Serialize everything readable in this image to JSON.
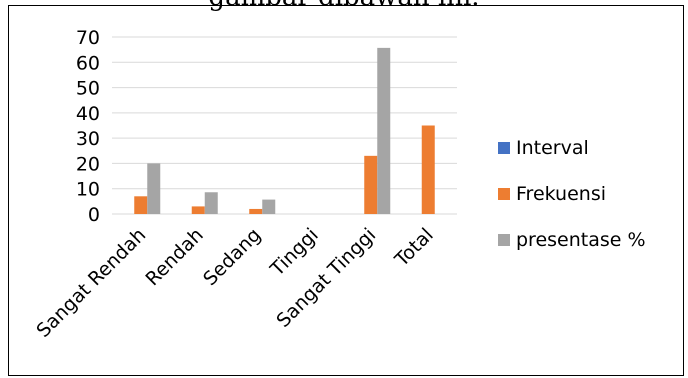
{
  "caption": "gambar dibawah ini.",
  "chart_data": {
    "type": "bar",
    "categories": [
      "Sangat Rendah",
      "Rendah",
      "Sedang",
      "Tinggi",
      "Sangat Tinggi",
      "Total"
    ],
    "series": [
      {
        "name": "Interval",
        "values": [
          0,
          0,
          0,
          0,
          0,
          0
        ],
        "color": "#4472C4"
      },
      {
        "name": "Frekuensi",
        "values": [
          7,
          3,
          2,
          0,
          23,
          35
        ],
        "color": "#ED7D31"
      },
      {
        "name": "presentase %",
        "values": [
          20,
          8.6,
          5.7,
          0,
          65.7,
          0
        ],
        "color": "#A5A5A5"
      }
    ],
    "ylim": [
      0,
      70
    ],
    "yticks": [
      0,
      10,
      20,
      30,
      40,
      50,
      60,
      70
    ],
    "grid": true,
    "legend": "right",
    "title": "",
    "xlabel": "",
    "ylabel": ""
  }
}
